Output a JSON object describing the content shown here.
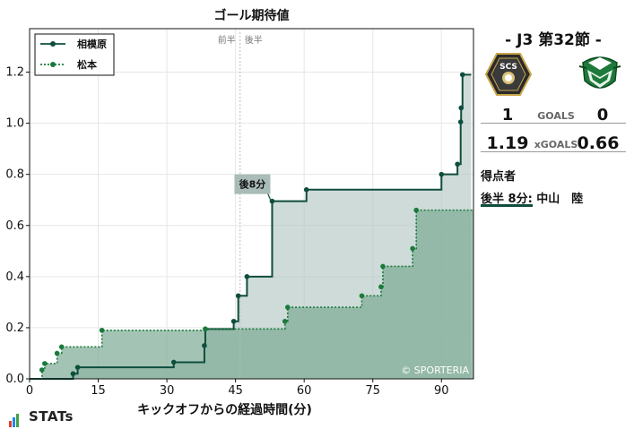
{
  "chart_data": {
    "type": "step",
    "title": "ゴール期待値",
    "xlabel": "キックオフからの経過時間(分)",
    "ylabel": "",
    "xlim": [
      0,
      97
    ],
    "ylim": [
      0,
      1.37
    ],
    "xticks": [
      0,
      15,
      30,
      45,
      60,
      75,
      90
    ],
    "yticks": [
      0.0,
      0.2,
      0.4,
      0.6,
      0.8,
      1.0,
      1.2
    ],
    "ytick_labels": [
      "0.0",
      "0.2",
      "0.4",
      "0.6",
      "0.8",
      "1.0",
      "1.2"
    ],
    "half_labels": [
      "前半",
      "後半"
    ],
    "halftime_minute": 46,
    "grid": true,
    "legend_position": "top-left",
    "series": [
      {
        "name": "相模原",
        "color": "#0f4d3d",
        "fill": "#b4c8c3",
        "line_style": "solid",
        "points": [
          [
            0,
            0.0
          ],
          [
            9.5,
            0.02
          ],
          [
            10.5,
            0.045
          ],
          [
            31.5,
            0.065
          ],
          [
            38.2,
            0.13
          ],
          [
            38.4,
            0.195
          ],
          [
            44.6,
            0.225
          ],
          [
            45.6,
            0.325
          ],
          [
            47.5,
            0.4
          ],
          [
            53.0,
            0.695
          ],
          [
            60.5,
            0.74
          ],
          [
            90.0,
            0.8
          ],
          [
            93.5,
            0.84
          ],
          [
            94.2,
            1.005
          ],
          [
            94.3,
            1.06
          ],
          [
            94.6,
            1.19
          ],
          [
            96.5,
            1.19
          ]
        ]
      },
      {
        "name": "松本",
        "color": "#1a7a3c",
        "fill": "#7cab94",
        "line_style": "dotted",
        "points": [
          [
            0,
            0.0
          ],
          [
            2.7,
            0.035
          ],
          [
            3.3,
            0.06
          ],
          [
            6.0,
            0.1
          ],
          [
            7.0,
            0.125
          ],
          [
            15.8,
            0.19
          ],
          [
            38.4,
            0.195
          ],
          [
            55.8,
            0.225
          ],
          [
            56.4,
            0.28
          ],
          [
            72.6,
            0.325
          ],
          [
            76.8,
            0.36
          ],
          [
            77.2,
            0.44
          ],
          [
            83.7,
            0.51
          ],
          [
            84.5,
            0.66
          ],
          [
            97,
            0.66
          ]
        ]
      }
    ],
    "annotations": [
      {
        "text": "後8分",
        "x": 53.0,
        "y": 0.695
      }
    ],
    "watermark": "© SPORTERIA"
  },
  "panel": {
    "match_title": "-  J3 第32節  -",
    "home_crest_text": "SCS",
    "home_crest_icon": "sagamihara-crest-icon",
    "away_crest_icon": "matsumoto-crest-icon",
    "home_goals": "1",
    "away_goals": "0",
    "goals_label": "GOALS",
    "home_xg": "1.19",
    "away_xg": "0.66",
    "xg_label": "xGOALS",
    "scorers_title": "得点者",
    "scorer_line": "後半   8分: 中山　陸"
  },
  "footer": {
    "logo_text": "STATs",
    "logo_bar_colors": [
      "#e53935",
      "#1e88e5",
      "#43a047"
    ]
  }
}
